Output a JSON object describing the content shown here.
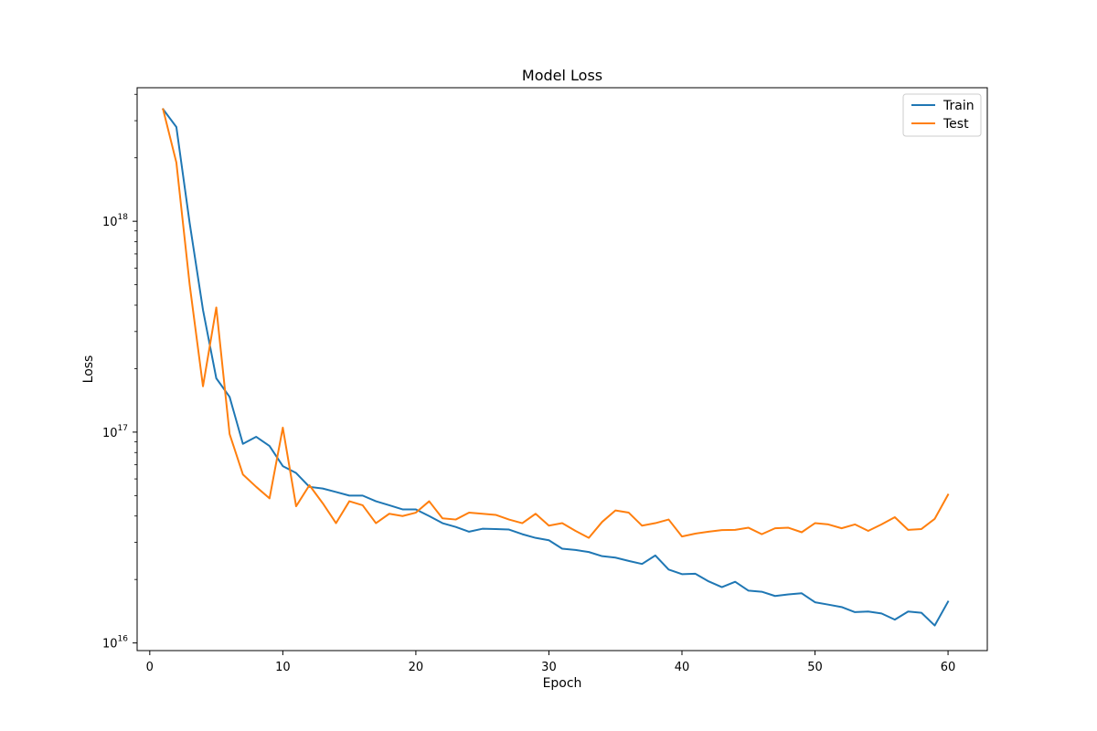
{
  "chart_data": {
    "type": "line",
    "title": "Model Loss",
    "xlabel": "Epoch",
    "ylabel": "Loss",
    "xlim": [
      -0.95,
      62.95
    ],
    "ylim": [
      9200000000000000.0,
      4.3e+18
    ],
    "yscale": "log",
    "grid": false,
    "legend": "top-right",
    "x_ticks": [
      {
        "value": 0,
        "label": "0"
      },
      {
        "value": 10,
        "label": "10"
      },
      {
        "value": 20,
        "label": "20"
      },
      {
        "value": 30,
        "label": "30"
      },
      {
        "value": 40,
        "label": "40"
      },
      {
        "value": 50,
        "label": "50"
      },
      {
        "value": 60,
        "label": "60"
      }
    ],
    "y_ticks": [
      {
        "value": 1e+16,
        "base": "10",
        "exp": "16"
      },
      {
        "value": 1e+17,
        "base": "10",
        "exp": "17"
      },
      {
        "value": 1e+18,
        "base": "10",
        "exp": "18"
      }
    ],
    "x": [
      1,
      2,
      3,
      4,
      5,
      6,
      7,
      8,
      9,
      10,
      11,
      12,
      13,
      14,
      15,
      16,
      17,
      18,
      19,
      20,
      21,
      22,
      23,
      24,
      25,
      26,
      27,
      28,
      29,
      30,
      31,
      32,
      33,
      34,
      35,
      36,
      37,
      38,
      39,
      40,
      41,
      42,
      43,
      44,
      45,
      46,
      47,
      48,
      49,
      50,
      51,
      52,
      53,
      54,
      55,
      56,
      57,
      58,
      59,
      60
    ],
    "series": [
      {
        "name": "Train",
        "color": "#1f77b4",
        "values": [
          3.4e+18,
          2.8e+18,
          9.8e+17,
          3.8e+17,
          1.8e+17,
          1.47e+17,
          8.8e+16,
          9.5e+16,
          8.6e+16,
          6.9e+16,
          6.4e+16,
          5.5e+16,
          5.4e+16,
          5.2e+16,
          5e+16,
          5e+16,
          4.7e+16,
          4.5e+16,
          4.3e+16,
          4.3e+16,
          4e+16,
          3.7e+16,
          3.55e+16,
          3.37e+16,
          3.48e+16,
          3.47e+16,
          3.45e+16,
          3.28e+16,
          3.15e+16,
          3.07e+16,
          2.8e+16,
          2.76e+16,
          2.7e+16,
          2.58e+16,
          2.54e+16,
          2.45e+16,
          2.37e+16,
          2.6e+16,
          2.23e+16,
          2.12e+16,
          2.13e+16,
          1.96e+16,
          1.84e+16,
          1.95e+16,
          1.77e+16,
          1.75e+16,
          1.67e+16,
          1.7e+16,
          1.72e+16,
          1.56e+16,
          1.52e+16,
          1.48e+16,
          1.4e+16,
          1.41e+16,
          1.38e+16,
          1.29e+16,
          1.41e+16,
          1.39e+16,
          1.21e+16,
          1.57e+16
        ]
      },
      {
        "name": "Test",
        "color": "#ff7f0e",
        "values": [
          3.4e+18,
          1.9e+18,
          5e+17,
          1.65e+17,
          3.9e+17,
          9.8e+16,
          6.3e+16,
          5.5e+16,
          4.85e+16,
          1.05e+17,
          4.45e+16,
          5.6e+16,
          4.6e+16,
          3.7e+16,
          4.7e+16,
          4.5e+16,
          3.7e+16,
          4.1e+16,
          4e+16,
          4.15e+16,
          4.7e+16,
          3.9e+16,
          3.85e+16,
          4.15e+16,
          4.1e+16,
          4.05e+16,
          3.85e+16,
          3.7e+16,
          4.1e+16,
          3.6e+16,
          3.7e+16,
          3.4e+16,
          3.15e+16,
          3.75e+16,
          4.25e+16,
          4.15e+16,
          3.6e+16,
          3.7e+16,
          3.85e+16,
          3.2e+16,
          3.3e+16,
          3.37e+16,
          3.43e+16,
          3.44e+16,
          3.52e+16,
          3.28e+16,
          3.5e+16,
          3.52e+16,
          3.35e+16,
          3.7e+16,
          3.65e+16,
          3.5e+16,
          3.65e+16,
          3.4e+16,
          3.65e+16,
          3.95e+16,
          3.44e+16,
          3.47e+16,
          3.88e+16,
          5.05e+16
        ]
      }
    ]
  }
}
